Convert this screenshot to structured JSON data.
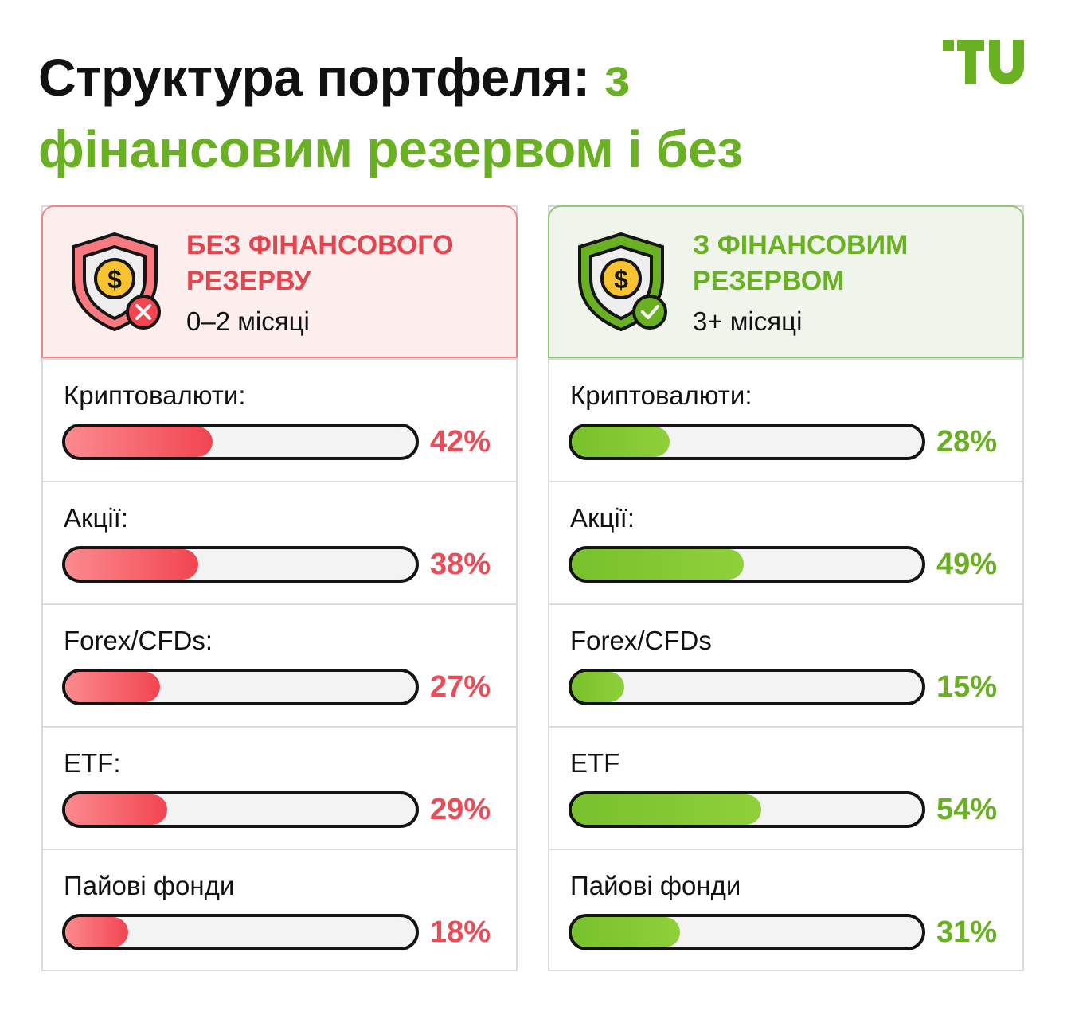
{
  "title": {
    "main": "Структура портфеля: ",
    "accent_line1": "з",
    "accent_line2": "фінансовим резервом і без"
  },
  "logo": {
    "text": "TU",
    "color": "#6ab023"
  },
  "colors": {
    "red": "#e2454d",
    "green": "#6ab023"
  },
  "chart_data": [
    {
      "type": "bar",
      "title": "БЕЗ ФІНАНСОВОГО РЕЗЕРВУ",
      "subtitle": "0–2 місяці",
      "icon": "shield-dollar-cross-icon",
      "color": "#ec4c57",
      "categories": [
        "Криптовалюти:",
        "Акції:",
        "Forex/CFDs:",
        "ETF:",
        "Пайові фонди"
      ],
      "values": [
        42,
        38,
        27,
        29,
        18
      ],
      "labels": [
        "42%",
        "38%",
        "27%",
        "29%",
        "18%"
      ],
      "unit": "%",
      "ylim": [
        0,
        100
      ]
    },
    {
      "type": "bar",
      "title": "З ФІНАНСОВИМ РЕЗЕРВОМ",
      "subtitle": "3+ місяці",
      "icon": "shield-dollar-check-icon",
      "color": "#6ab023",
      "categories": [
        "Криптовалюти:",
        "Акції:",
        "Forex/CFDs",
        "ETF",
        "Пайові фонди"
      ],
      "values": [
        28,
        49,
        15,
        54,
        31
      ],
      "labels": [
        "28%",
        "49%",
        "15%",
        "54%",
        "31%"
      ],
      "unit": "%",
      "ylim": [
        0,
        100
      ]
    }
  ]
}
